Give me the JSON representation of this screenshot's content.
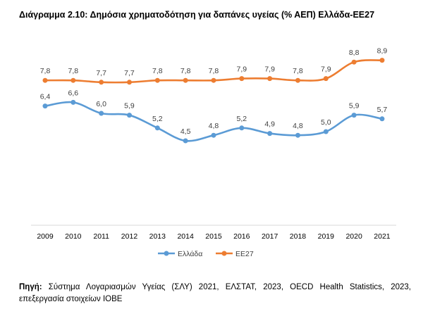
{
  "title": "Διάγραμμα 2.10: Δημόσια χρηματοδότηση για δαπάνες υγείας (% ΑΕΠ) Ελλάδα-ΕΕ27",
  "chart_data": {
    "type": "line",
    "title": "Διάγραμμα 2.10: Δημόσια χρηματοδότηση για δαπάνες υγείας (% ΑΕΠ) Ελλάδα-ΕΕ27",
    "categories": [
      "2009",
      "2010",
      "2011",
      "2012",
      "2013",
      "2014",
      "2015",
      "2016",
      "2017",
      "2018",
      "2019",
      "2020",
      "2021"
    ],
    "series": [
      {
        "name": "Ελλάδα",
        "color": "#5B9BD5",
        "values": [
          6.4,
          6.6,
          6.0,
          5.9,
          5.2,
          4.5,
          4.8,
          5.2,
          4.9,
          4.8,
          5.0,
          5.9,
          5.7
        ],
        "labels": [
          "6,4",
          "6,6",
          "6,0",
          "5,9",
          "5,2",
          "4,5",
          "4,8",
          "5,2",
          "4,9",
          "4,8",
          "5,0",
          "5,9",
          "5,7"
        ]
      },
      {
        "name": "ΕΕ27",
        "color": "#ED7D31",
        "values": [
          7.8,
          7.8,
          7.7,
          7.7,
          7.8,
          7.8,
          7.8,
          7.9,
          7.9,
          7.8,
          7.9,
          8.8,
          8.9
        ],
        "labels": [
          "7,8",
          "7,8",
          "7,7",
          "7,7",
          "7,8",
          "7,8",
          "7,8",
          "7,9",
          "7,9",
          "7,8",
          "7,9",
          "8,8",
          "8,9"
        ]
      }
    ],
    "ylim": [
      0,
      10
    ],
    "grid": false,
    "legend": "bottom",
    "smooth": true
  },
  "source": {
    "label": "Πηγή:",
    "text": " Σύστημα Λογαριασμών Υγείας (ΣΛΥ) 2021, ΕΛΣΤΑΤ, 2023, OECD Health Statistics, 2023, επεξεργασία στοιχείων IOBE"
  }
}
